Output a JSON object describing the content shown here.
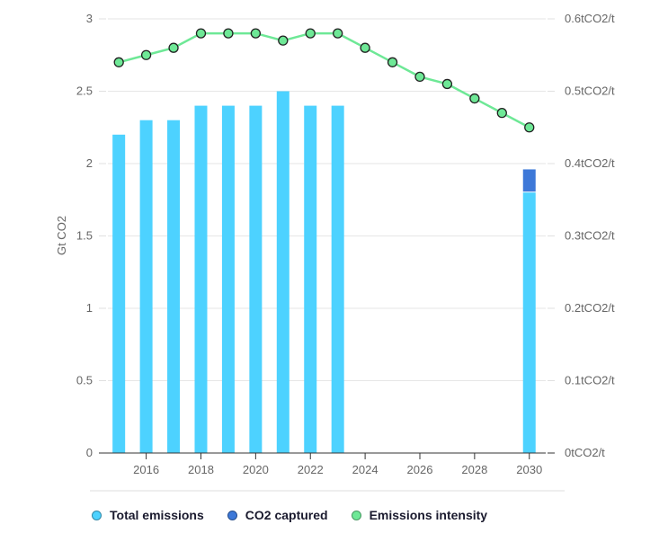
{
  "chart_data": {
    "type": "bar",
    "title": "",
    "xlabel": "",
    "ylabel": "Gt CO2",
    "y2label": "",
    "categories": [
      2015,
      2016,
      2017,
      2018,
      2019,
      2020,
      2021,
      2022,
      2023,
      2024,
      2025,
      2026,
      2027,
      2028,
      2029,
      2030
    ],
    "x_ticks": [
      "2016",
      "2018",
      "2020",
      "2022",
      "2024",
      "2026",
      "2028",
      "2030"
    ],
    "x_tick_values": [
      2016,
      2018,
      2020,
      2022,
      2024,
      2026,
      2028,
      2030
    ],
    "ylim": [
      0,
      3
    ],
    "y_ticks": [
      "0",
      "0.5",
      "1",
      "1.5",
      "2",
      "2.5",
      "3"
    ],
    "y_tick_values": [
      0,
      0.5,
      1,
      1.5,
      2,
      2.5,
      3
    ],
    "y2lim": [
      0,
      0.6
    ],
    "y2_ticks": [
      "0tCO2/t",
      "0.1tCO2/t",
      "0.2tCO2/t",
      "0.3tCO2/t",
      "0.4tCO2/t",
      "0.5tCO2/t",
      "0.6tCO2/t"
    ],
    "y2_tick_values": [
      0,
      0.1,
      0.2,
      0.3,
      0.4,
      0.5,
      0.6
    ],
    "grid": true,
    "legend_position": "bottom-left",
    "series": [
      {
        "name": "Total emissions",
        "type": "bar",
        "axis": "left",
        "color": "#4dd2ff",
        "values": [
          2.2,
          2.3,
          2.3,
          2.4,
          2.4,
          2.4,
          2.5,
          2.4,
          2.4,
          null,
          null,
          null,
          null,
          null,
          null,
          1.8
        ]
      },
      {
        "name": "CO2 captured",
        "type": "bar",
        "stacked": true,
        "axis": "left",
        "color": "#3d78d8",
        "values": [
          null,
          null,
          null,
          null,
          null,
          null,
          null,
          null,
          null,
          null,
          null,
          null,
          null,
          null,
          null,
          0.16
        ]
      },
      {
        "name": "Emissions intensity",
        "type": "line",
        "axis": "right",
        "color": "#6ee896",
        "values": [
          0.54,
          0.55,
          0.56,
          0.58,
          0.58,
          0.58,
          0.57,
          0.58,
          0.58,
          0.56,
          0.54,
          0.52,
          0.51,
          0.49,
          0.47,
          0.45
        ]
      }
    ]
  },
  "legend": [
    {
      "label": "Total emissions",
      "color": "#4dd2ff"
    },
    {
      "label": "CO2 captured",
      "color": "#3d78d8"
    },
    {
      "label": "Emissions intensity",
      "color": "#6ee896"
    }
  ]
}
